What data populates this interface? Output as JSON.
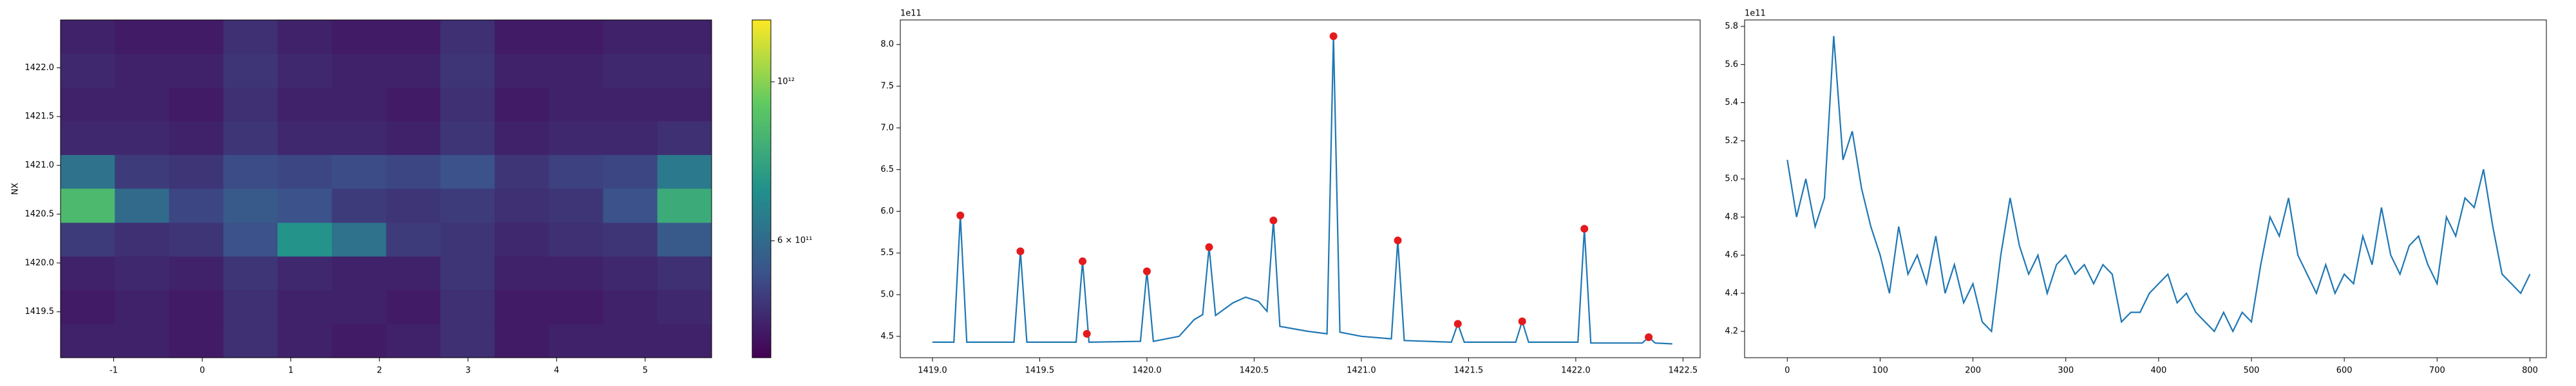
{
  "chart_data": [
    {
      "type": "heatmap",
      "ylabel": "NX",
      "colormap": "viridis",
      "clog": true,
      "xlim": [
        -1.6,
        5.75
      ],
      "ylim": [
        1419.03,
        1422.49
      ],
      "xticks": [
        -1,
        0,
        1,
        2,
        3,
        4,
        5
      ],
      "yticks": [
        1419.5,
        {
          "value": 1420,
          "label": "1420.0"
        },
        1420.5,
        {
          "value": 1421,
          "label": "1421.0"
        },
        1421.5,
        {
          "value": 1422,
          "label": "1422.0"
        }
      ],
      "clim": [
        412000000000.0,
        1220000000000.0
      ],
      "cticks": [
        {
          "value": 600000000000,
          "label": "6 × 10¹¹"
        },
        {
          "value": 1000000000000,
          "label": "10¹²"
        }
      ],
      "x": [
        -1.294,
        -0.681,
        -0.069,
        0.544,
        1.156,
        1.769,
        2.381,
        2.994,
        3.606,
        4.219,
        4.831,
        5.444
      ],
      "y": [
        1419.2,
        1419.55,
        1419.9,
        1420.24,
        1420.59,
        1420.94,
        1421.28,
        1421.63,
        1421.97,
        1422.32
      ],
      "z": [
        [
          460000000000.0,
          460000000000.0,
          450000000000.0,
          480000000000.0,
          460000000000.0,
          450000000000.0,
          460000000000.0,
          480000000000.0,
          450000000000.0,
          460000000000.0,
          460000000000.0,
          460000000000.0
        ],
        [
          450000000000.0,
          460000000000.0,
          450000000000.0,
          480000000000.0,
          460000000000.0,
          460000000000.0,
          450000000000.0,
          480000000000.0,
          450000000000.0,
          450000000000.0,
          460000000000.0,
          470000000000.0
        ],
        [
          460000000000.0,
          470000000000.0,
          460000000000.0,
          490000000000.0,
          470000000000.0,
          460000000000.0,
          460000000000.0,
          490000000000.0,
          460000000000.0,
          460000000000.0,
          470000000000.0,
          480000000000.0
        ],
        [
          500000000000.0,
          480000000000.0,
          490000000000.0,
          540000000000.0,
          720000000000.0,
          620000000000.0,
          500000000000.0,
          490000000000.0,
          470000000000.0,
          480000000000.0,
          490000000000.0,
          560000000000.0
        ],
        [
          860000000000.0,
          600000000000.0,
          520000000000.0,
          560000000000.0,
          540000000000.0,
          500000000000.0,
          490000000000.0,
          500000000000.0,
          480000000000.0,
          490000000000.0,
          540000000000.0,
          800000000000.0
        ],
        [
          620000000000.0,
          500000000000.0,
          490000000000.0,
          530000000000.0,
          520000000000.0,
          530000000000.0,
          520000000000.0,
          540000000000.0,
          490000000000.0,
          510000000000.0,
          520000000000.0,
          640000000000.0
        ],
        [
          470000000000.0,
          470000000000.0,
          460000000000.0,
          490000000000.0,
          470000000000.0,
          470000000000.0,
          460000000000.0,
          490000000000.0,
          460000000000.0,
          470000000000.0,
          470000000000.0,
          480000000000.0
        ],
        [
          460000000000.0,
          460000000000.0,
          450000000000.0,
          480000000000.0,
          460000000000.0,
          460000000000.0,
          450000000000.0,
          480000000000.0,
          450000000000.0,
          460000000000.0,
          460000000000.0,
          460000000000.0
        ],
        [
          470000000000.0,
          460000000000.0,
          460000000000.0,
          490000000000.0,
          470000000000.0,
          460000000000.0,
          460000000000.0,
          490000000000.0,
          460000000000.0,
          460000000000.0,
          470000000000.0,
          470000000000.0
        ],
        [
          460000000000.0,
          450000000000.0,
          450000000000.0,
          480000000000.0,
          460000000000.0,
          450000000000.0,
          450000000000.0,
          480000000000.0,
          450000000000.0,
          450000000000.0,
          460000000000.0,
          460000000000.0
        ]
      ]
    },
    {
      "type": "line",
      "y_offset_label": "1e11",
      "xlim": [
        1418.85,
        1422.58
      ],
      "ylim": [
        4.244,
        8.295
      ],
      "xticks": [
        {
          "value": 1419,
          "label": "1419.0"
        },
        1419.5,
        {
          "value": 1420,
          "label": "1420.0"
        },
        1420.5,
        {
          "value": 1421,
          "label": "1421.0"
        },
        1421.5,
        {
          "value": 1422,
          "label": "1422.0"
        },
        1422.5
      ],
      "yticks": [
        4.5,
        {
          "value": 5,
          "label": "5.0"
        },
        5.5,
        {
          "value": 6,
          "label": "6.0"
        },
        6.5,
        {
          "value": 7,
          "label": "7.0"
        },
        7.5,
        {
          "value": 8,
          "label": "8.0"
        }
      ],
      "series": [
        {
          "style": "line",
          "color": "#1f77b4",
          "x": [
            1419.0,
            1419.1,
            1419.13,
            1419.16,
            1419.38,
            1419.41,
            1419.44,
            1419.67,
            1419.7,
            1419.73,
            1419.97,
            1420.0,
            1420.03,
            1420.15,
            1420.22,
            1420.26,
            1420.29,
            1420.32,
            1420.4,
            1420.46,
            1420.52,
            1420.56,
            1420.59,
            1420.62,
            1420.75,
            1420.84,
            1420.87,
            1420.9,
            1421.0,
            1421.14,
            1421.17,
            1421.2,
            1421.42,
            1421.45,
            1421.48,
            1421.72,
            1421.75,
            1421.78,
            1422.01,
            1422.04,
            1422.07,
            1422.31,
            1422.34,
            1422.37,
            1422.45
          ],
          "values": [
            4.43,
            4.43,
            5.95,
            4.43,
            4.43,
            5.52,
            4.43,
            4.43,
            5.4,
            4.43,
            4.44,
            5.28,
            4.44,
            4.5,
            4.7,
            4.76,
            5.57,
            4.75,
            4.9,
            4.97,
            4.92,
            4.8,
            5.89,
            4.62,
            4.56,
            4.53,
            8.1,
            4.55,
            4.5,
            4.47,
            5.65,
            4.45,
            4.43,
            4.65,
            4.43,
            4.43,
            4.68,
            4.43,
            4.43,
            5.79,
            4.42,
            4.42,
            4.49,
            4.42,
            4.41
          ]
        },
        {
          "style": "scatter",
          "color": "#e41a1c",
          "x": [
            1419.13,
            1419.41,
            1419.7,
            1419.72,
            1420.0,
            1420.29,
            1420.59,
            1420.87,
            1421.17,
            1421.45,
            1421.75,
            1422.04,
            1422.34
          ],
          "values": [
            5.95,
            5.52,
            5.4,
            4.53,
            5.28,
            5.57,
            5.89,
            8.1,
            5.65,
            4.65,
            4.68,
            5.79,
            4.49
          ]
        }
      ]
    },
    {
      "type": "line",
      "y_offset_label": "1e11",
      "xlim": [
        -46,
        817.7
      ],
      "ylim": [
        4.062,
        5.834
      ],
      "xticks": [
        0,
        100,
        200,
        300,
        400,
        500,
        600,
        700,
        800
      ],
      "yticks": [
        4.2,
        4.4,
        4.6,
        4.8,
        {
          "value": 5,
          "label": "5.0"
        },
        5.2,
        5.4,
        5.6,
        5.8
      ],
      "series": [
        {
          "style": "line",
          "color": "#1f77b4",
          "x": [
            0,
            10,
            20,
            30,
            40,
            50,
            60,
            70,
            80,
            90,
            100,
            110,
            120,
            130,
            140,
            150,
            160,
            170,
            180,
            190,
            200,
            210,
            220,
            230,
            240,
            250,
            260,
            270,
            280,
            290,
            300,
            310,
            320,
            330,
            340,
            350,
            360,
            370,
            380,
            390,
            400,
            410,
            420,
            430,
            440,
            450,
            460,
            470,
            480,
            490,
            500,
            510,
            520,
            530,
            540,
            550,
            560,
            570,
            580,
            590,
            600,
            610,
            620,
            630,
            640,
            650,
            660,
            670,
            680,
            690,
            700,
            710,
            720,
            730,
            740,
            750,
            760,
            770,
            780,
            790,
            800
          ],
          "values": [
            5.1,
            4.8,
            5.0,
            4.75,
            4.9,
            5.75,
            5.1,
            5.25,
            4.95,
            4.75,
            4.6,
            4.4,
            4.75,
            4.5,
            4.6,
            4.45,
            4.7,
            4.4,
            4.55,
            4.35,
            4.45,
            4.25,
            4.2,
            4.6,
            4.9,
            4.65,
            4.5,
            4.6,
            4.4,
            4.55,
            4.6,
            4.5,
            4.55,
            4.45,
            4.55,
            4.5,
            4.25,
            4.3,
            4.3,
            4.4,
            4.45,
            4.5,
            4.35,
            4.4,
            4.3,
            4.25,
            4.2,
            4.3,
            4.2,
            4.3,
            4.25,
            4.55,
            4.8,
            4.7,
            4.9,
            4.6,
            4.5,
            4.4,
            4.55,
            4.4,
            4.5,
            4.45,
            4.7,
            4.55,
            4.85,
            4.6,
            4.5,
            4.65,
            4.7,
            4.55,
            4.45,
            4.8,
            4.7,
            4.9,
            4.85,
            5.05,
            4.75,
            4.5,
            4.45,
            4.4,
            4.5
          ]
        }
      ]
    }
  ]
}
